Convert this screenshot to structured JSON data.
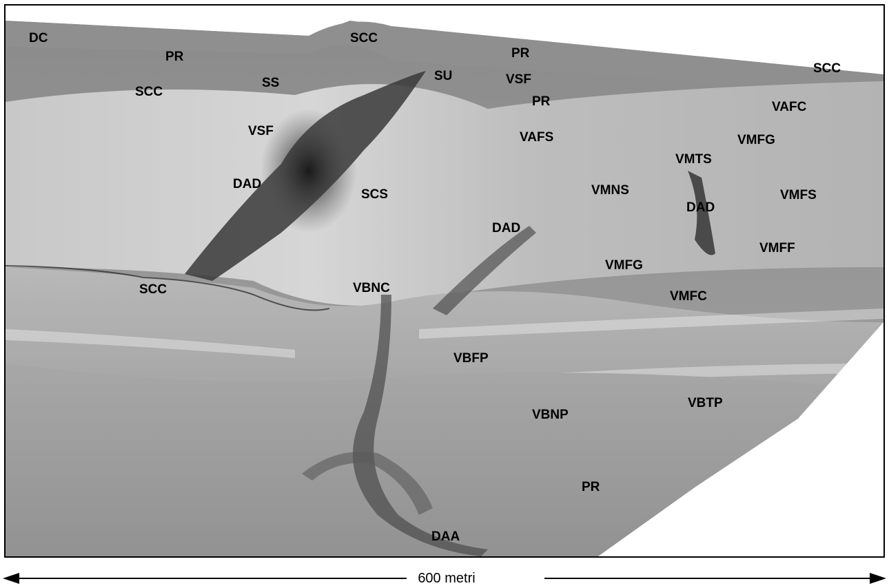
{
  "scale_bar": {
    "label": "600 metri"
  },
  "labels": [
    "DC",
    "PR",
    "SCC",
    "PR",
    "SU",
    "SS",
    "VSF",
    "SCC",
    "SCC",
    "PR",
    "VAFC",
    "VSF",
    "VAFS",
    "VMFG",
    "VMTS",
    "DAD",
    "SCS",
    "VMNS",
    "DAD",
    "VMFS",
    "DAD",
    "VMFF",
    "VMFG",
    "SCC",
    "VBNC",
    "VMFC",
    "VBFP",
    "VBTP",
    "VBNP",
    "PR",
    "DAA"
  ]
}
